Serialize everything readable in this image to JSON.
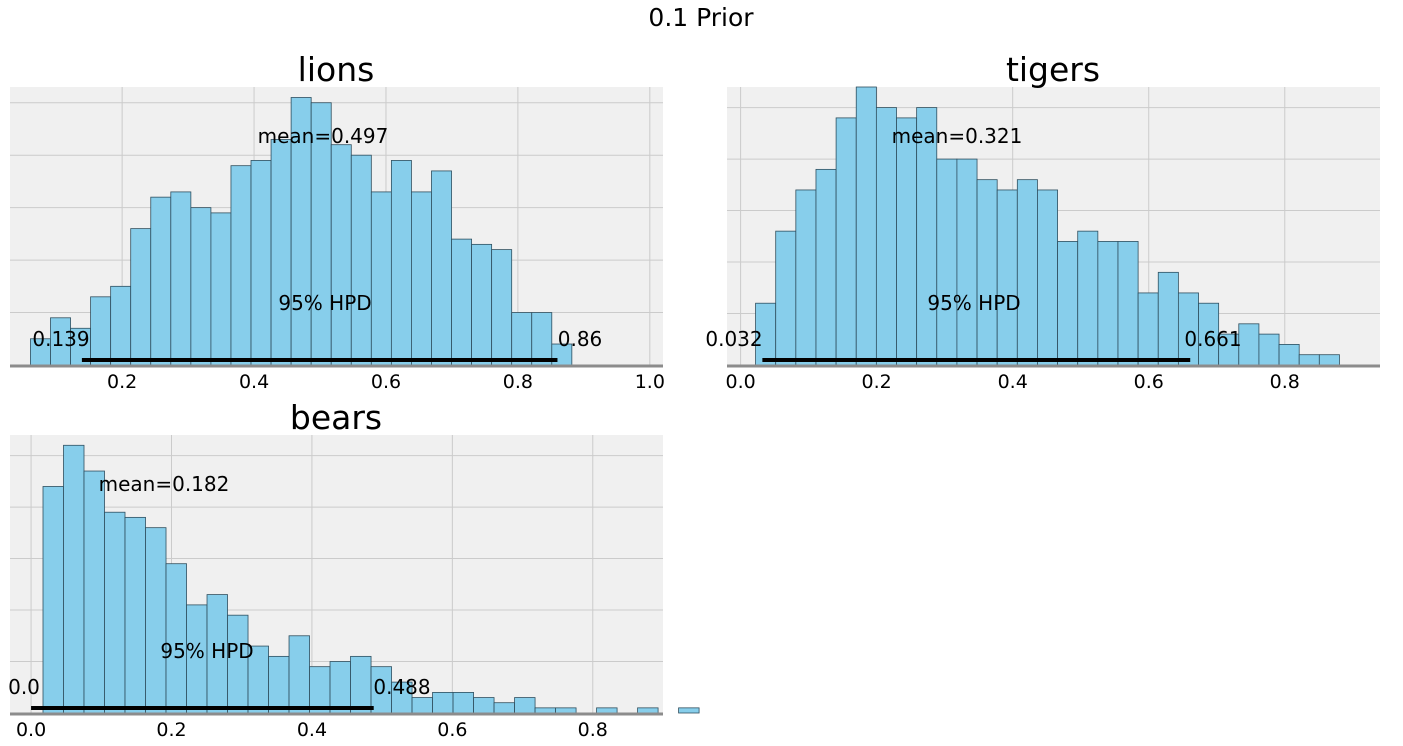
{
  "figure": {
    "title": "0.1 Prior"
  },
  "style": {
    "bar_color": "#87ceeb",
    "bar_edge": "#2f4f5f",
    "panel_bg": "#f0f0f0",
    "grid_color": "#cbcbcb",
    "hpd_color": "#000000"
  },
  "chart_data": [
    {
      "type": "bar",
      "title": "lions",
      "xlim": [
        0.03,
        1.02
      ],
      "xticks": [
        0.2,
        0.4,
        0.6,
        0.8,
        1.0
      ],
      "xtick_labels": [
        "0.2",
        "0.4",
        "0.6",
        "0.8",
        "1.0"
      ],
      "bin_start": 0.061,
      "bin_width": 0.0304,
      "counts": [
        5,
        9,
        7,
        13,
        15,
        26,
        32,
        33,
        30,
        29,
        38,
        39,
        43,
        51,
        50,
        42,
        40,
        33,
        39,
        33,
        37,
        24,
        23,
        22,
        10,
        10,
        4
      ],
      "ymax": 53,
      "grid_y": [
        10,
        20,
        30,
        40,
        50
      ],
      "grid_x": [
        0.2,
        0.4,
        0.6,
        0.8,
        1.0
      ],
      "mean_label": "mean=0.497",
      "hpd_label": "95% HPD",
      "hpd": [
        0.139,
        0.86
      ],
      "hpd_low_label": "0.139",
      "hpd_high_label": "0.86"
    },
    {
      "type": "bar",
      "title": "tigers",
      "xlim": [
        -0.02,
        0.94
      ],
      "xticks": [
        0.0,
        0.2,
        0.4,
        0.6,
        0.8
      ],
      "xtick_labels": [
        "0.0",
        "0.2",
        "0.4",
        "0.6",
        "0.8"
      ],
      "bin_start": 0.022,
      "bin_width": 0.0296,
      "counts": [
        6,
        13,
        17,
        19,
        24,
        27,
        25,
        24,
        25,
        20,
        20,
        18,
        17,
        18,
        17,
        12,
        13,
        12,
        12,
        7,
        9,
        7,
        6,
        3,
        4,
        3,
        2,
        1,
        1
      ],
      "ymax": 27,
      "grid_y": [
        5,
        10,
        15,
        20,
        25
      ],
      "grid_x": [
        0.0,
        0.2,
        0.4,
        0.6,
        0.8
      ],
      "mean_label": "mean=0.321",
      "hpd_label": "95% HPD",
      "hpd": [
        0.032,
        0.661
      ],
      "hpd_low_label": "0.032",
      "hpd_high_label": "0.661"
    },
    {
      "type": "bar",
      "title": "bears",
      "xlim": [
        -0.03,
        0.9
      ],
      "xticks": [
        0.0,
        0.2,
        0.4,
        0.6,
        0.8
      ],
      "xtick_labels": [
        "0.0",
        "0.2",
        "0.4",
        "0.6",
        "0.8"
      ],
      "bin_start": 0.017,
      "bin_width": 0.0292,
      "counts": [
        44,
        52,
        47,
        39,
        38,
        36,
        29,
        21,
        23,
        19,
        13,
        11,
        15,
        9,
        10,
        11,
        9,
        6,
        3,
        4,
        4,
        3,
        2,
        3,
        1,
        1,
        0,
        1,
        0,
        1,
        0,
        1
      ],
      "ymax": 54,
      "grid_y": [
        10,
        20,
        30,
        40,
        50
      ],
      "grid_x": [
        0.0,
        0.2,
        0.4,
        0.6,
        0.8
      ],
      "mean_label": "mean=0.182",
      "hpd_label": "95% HPD",
      "hpd": [
        0.0,
        0.488
      ],
      "hpd_low_label": "0.0",
      "hpd_high_label": "0.488"
    }
  ]
}
